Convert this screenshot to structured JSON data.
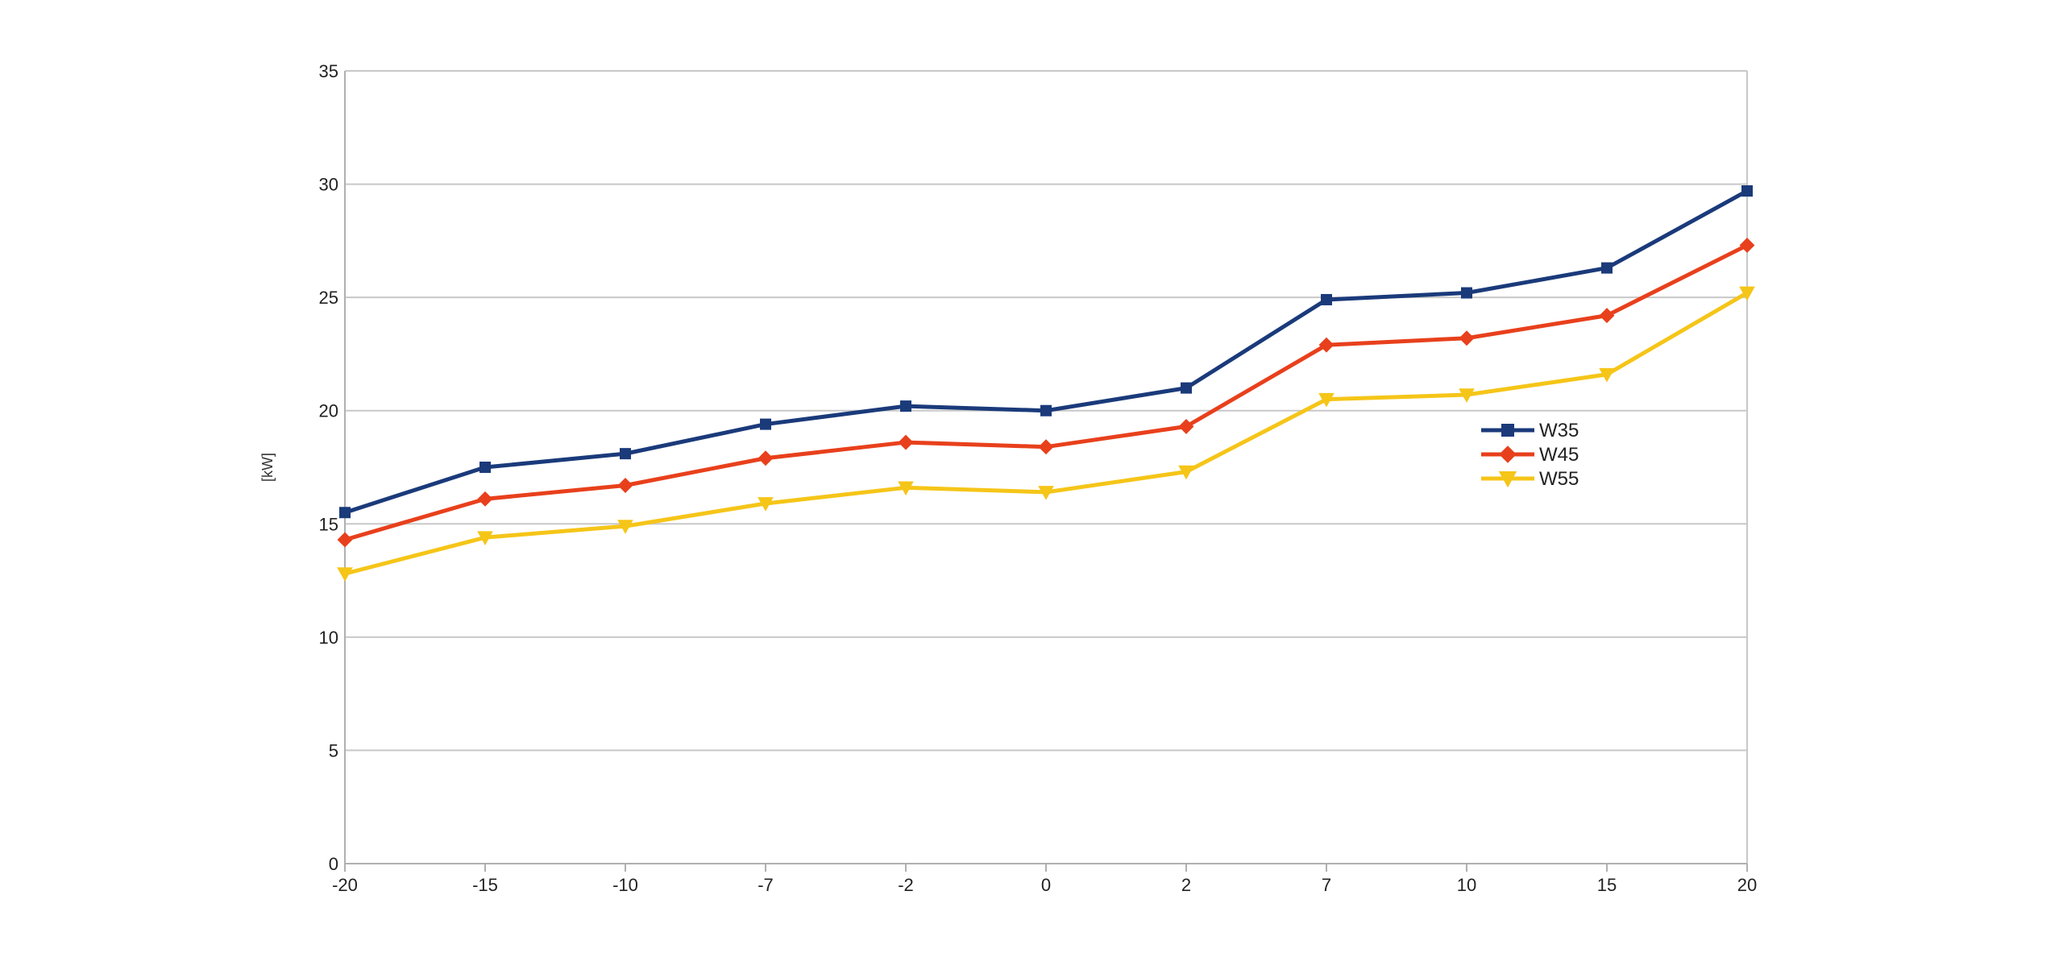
{
  "chart_data": {
    "type": "line",
    "title": "",
    "xlabel": "",
    "ylabel": "[kW]",
    "categories": [
      "-20",
      "-15",
      "-10",
      "-7",
      "-2",
      "0",
      "2",
      "7",
      "10",
      "15",
      "20"
    ],
    "ylim": [
      0,
      35
    ],
    "yticks": [
      "0",
      "5",
      "10",
      "15",
      "20",
      "25",
      "30",
      "35"
    ],
    "grid": true,
    "legend_position": "right",
    "series": [
      {
        "name": "W35",
        "color": "#1a3a7a",
        "marker": "square",
        "values": [
          15.5,
          17.5,
          18.1,
          19.4,
          20.2,
          20.0,
          21.0,
          24.9,
          25.2,
          26.3,
          29.7
        ]
      },
      {
        "name": "W45",
        "color": "#e8401c",
        "marker": "diamond",
        "values": [
          14.3,
          16.1,
          16.7,
          17.9,
          18.6,
          18.4,
          19.3,
          22.9,
          23.2,
          24.2,
          27.3
        ]
      },
      {
        "name": "W55",
        "color": "#f5c518",
        "marker": "triangle-down",
        "values": [
          12.8,
          14.4,
          14.9,
          15.9,
          16.6,
          16.4,
          17.3,
          20.5,
          20.7,
          21.6,
          25.2
        ]
      }
    ]
  }
}
